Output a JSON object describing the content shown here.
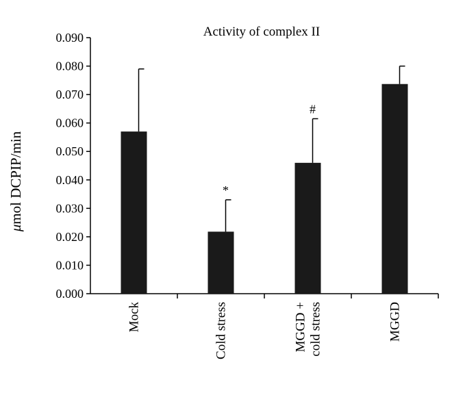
{
  "chart_data": {
    "type": "bar",
    "title": "Activity of complex II",
    "ylabel_prefix": "μ",
    "ylabel_rest": "mol DCPIP/min",
    "xlabel": "",
    "categories": [
      [
        "Mock"
      ],
      [
        "Cold stress"
      ],
      [
        "MGGD +",
        "cold stress"
      ],
      [
        "MGGD"
      ]
    ],
    "values": [
      0.057,
      0.0218,
      0.046,
      0.0737
    ],
    "errors": [
      0.022,
      0.0112,
      0.0155,
      0.0063
    ],
    "annotations": [
      "",
      "*",
      "#",
      ""
    ],
    "ylim": [
      0,
      0.09
    ],
    "yticks": [
      "0.000",
      "0.010",
      "0.020",
      "0.030",
      "0.040",
      "0.050",
      "0.060",
      "0.070",
      "0.080",
      "0.090"
    ],
    "bar_color": "#1a1a1a",
    "grid": false,
    "legend": "none"
  }
}
